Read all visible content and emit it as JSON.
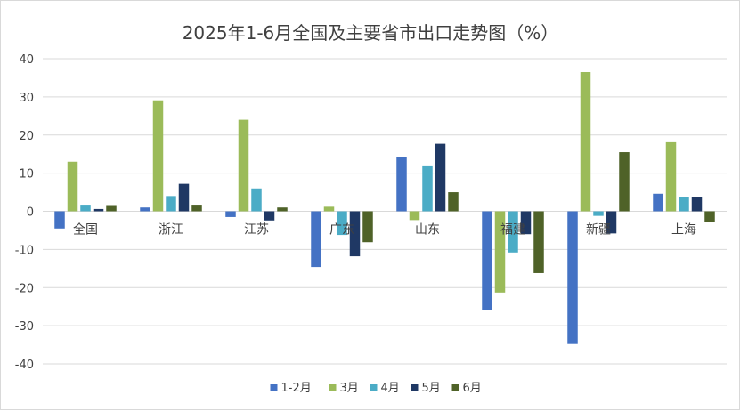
{
  "chart_data": {
    "type": "bar",
    "title": "2025年1-6月全国及主要省市出口走势图（%）",
    "xlabel": "",
    "ylabel": "",
    "ylim": [
      -40,
      40
    ],
    "yticks": [
      40,
      30,
      20,
      10,
      0,
      -10,
      -20,
      -30,
      -40
    ],
    "grid": true,
    "legend_position": "bottom",
    "categories": [
      "全国",
      "浙江",
      "江苏",
      "广东",
      "山东",
      "福建",
      "新疆",
      "上海"
    ],
    "series": [
      {
        "name": "1-2月",
        "color": "#4472c4",
        "values": [
          -4.5,
          1.0,
          -1.5,
          -14.6,
          14.3,
          -26.0,
          -34.8,
          4.6
        ]
      },
      {
        "name": "3月",
        "color": "#9bbb59",
        "values": [
          13.0,
          29.1,
          24.0,
          1.2,
          -2.3,
          -21.3,
          36.5,
          18.1
        ]
      },
      {
        "name": "4月",
        "color": "#4bacc6",
        "values": [
          1.5,
          4.0,
          6.0,
          -6.2,
          11.8,
          -10.8,
          -1.2,
          3.8
        ]
      },
      {
        "name": "5月",
        "color": "#1f3864",
        "values": [
          0.6,
          7.2,
          -2.4,
          -11.8,
          17.7,
          -6.0,
          -5.8,
          3.8
        ]
      },
      {
        "name": "6月",
        "color": "#4f6228",
        "values": [
          1.4,
          1.5,
          1.0,
          -8.1,
          5.0,
          -16.2,
          15.5,
          -2.7
        ]
      }
    ]
  }
}
